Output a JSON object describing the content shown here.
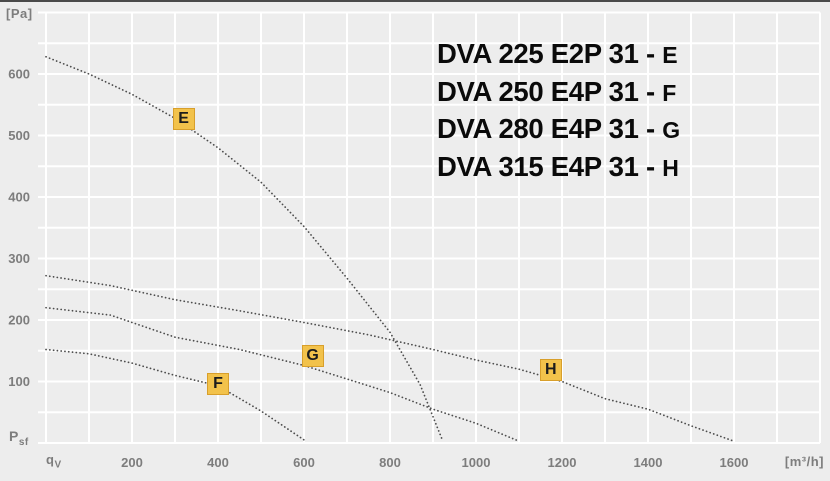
{
  "page": {
    "background": "#ededed",
    "top_border_color": "#4a4a4a"
  },
  "axes": {
    "y_unit": "[Pa]",
    "x_unit": "[m³/h]",
    "y_symbol": "P",
    "y_symbol_sub": "sf",
    "x_symbol": "q",
    "x_symbol_sub": "V",
    "x_tick_labels": [
      200,
      400,
      600,
      800,
      1000,
      1200,
      1400,
      1600
    ],
    "y_tick_labels": [
      100,
      200,
      300,
      400,
      500,
      600
    ],
    "tick_color": "#7d7d7d"
  },
  "legend": {
    "items": [
      {
        "model": "DVA 225 E2P 31",
        "separator": " - ",
        "suffix": "E"
      },
      {
        "model": "DVA 250 E4P 31",
        "separator": " - ",
        "suffix": "F"
      },
      {
        "model": "DVA 280 E4P 31",
        "separator": " - ",
        "suffix": "G"
      },
      {
        "model": "DVA 315 E4P 31",
        "separator": " - ",
        "suffix": "H"
      }
    ]
  },
  "chart_data": {
    "type": "line",
    "style": "dotted",
    "title": "",
    "xlabel": "qV [m³/h]",
    "ylabel": "Psf [Pa]",
    "xlim": [
      0,
      1800
    ],
    "ylim": [
      0,
      700
    ],
    "grid": {
      "x_step": 100,
      "y_step": 50,
      "color": "#ffffff",
      "on": true
    },
    "curve_color": "#4d4d4d",
    "label_box": {
      "bg": "#f2c24b",
      "border": "#d89f2b",
      "text_color": "#1c1c1c"
    },
    "series": [
      {
        "name": "DVA 225 E2P 31",
        "label": "E",
        "label_at": {
          "q": 320,
          "p": 527
        },
        "points": [
          [
            0,
            628
          ],
          [
            100,
            600
          ],
          [
            200,
            567
          ],
          [
            300,
            528
          ],
          [
            400,
            480
          ],
          [
            500,
            424
          ],
          [
            600,
            352
          ],
          [
            700,
            268
          ],
          [
            800,
            180
          ],
          [
            870,
            95
          ],
          [
            920,
            8
          ]
        ]
      },
      {
        "name": "DVA 250 E4P 31",
        "label": "F",
        "label_at": {
          "q": 400,
          "p": 96
        },
        "points": [
          [
            0,
            152
          ],
          [
            100,
            145
          ],
          [
            200,
            130
          ],
          [
            300,
            110
          ],
          [
            400,
            93
          ],
          [
            500,
            52
          ],
          [
            600,
            5
          ]
        ]
      },
      {
        "name": "DVA 280 E4P 31",
        "label": "G",
        "label_at": {
          "q": 620,
          "p": 141
        },
        "points": [
          [
            0,
            220
          ],
          [
            150,
            208
          ],
          [
            300,
            172
          ],
          [
            450,
            152
          ],
          [
            600,
            126
          ],
          [
            700,
            104
          ],
          [
            800,
            82
          ],
          [
            900,
            55
          ],
          [
            1000,
            32
          ],
          [
            1100,
            3
          ]
        ]
      },
      {
        "name": "DVA 315 E4P 31",
        "label": "H",
        "label_at": {
          "q": 1174,
          "p": 118
        },
        "points": [
          [
            0,
            272
          ],
          [
            150,
            256
          ],
          [
            300,
            233
          ],
          [
            450,
            215
          ],
          [
            600,
            196
          ],
          [
            750,
            176
          ],
          [
            900,
            152
          ],
          [
            1000,
            135
          ],
          [
            1100,
            120
          ],
          [
            1200,
            100
          ],
          [
            1300,
            72
          ],
          [
            1400,
            55
          ],
          [
            1500,
            28
          ],
          [
            1600,
            3
          ]
        ]
      }
    ]
  }
}
